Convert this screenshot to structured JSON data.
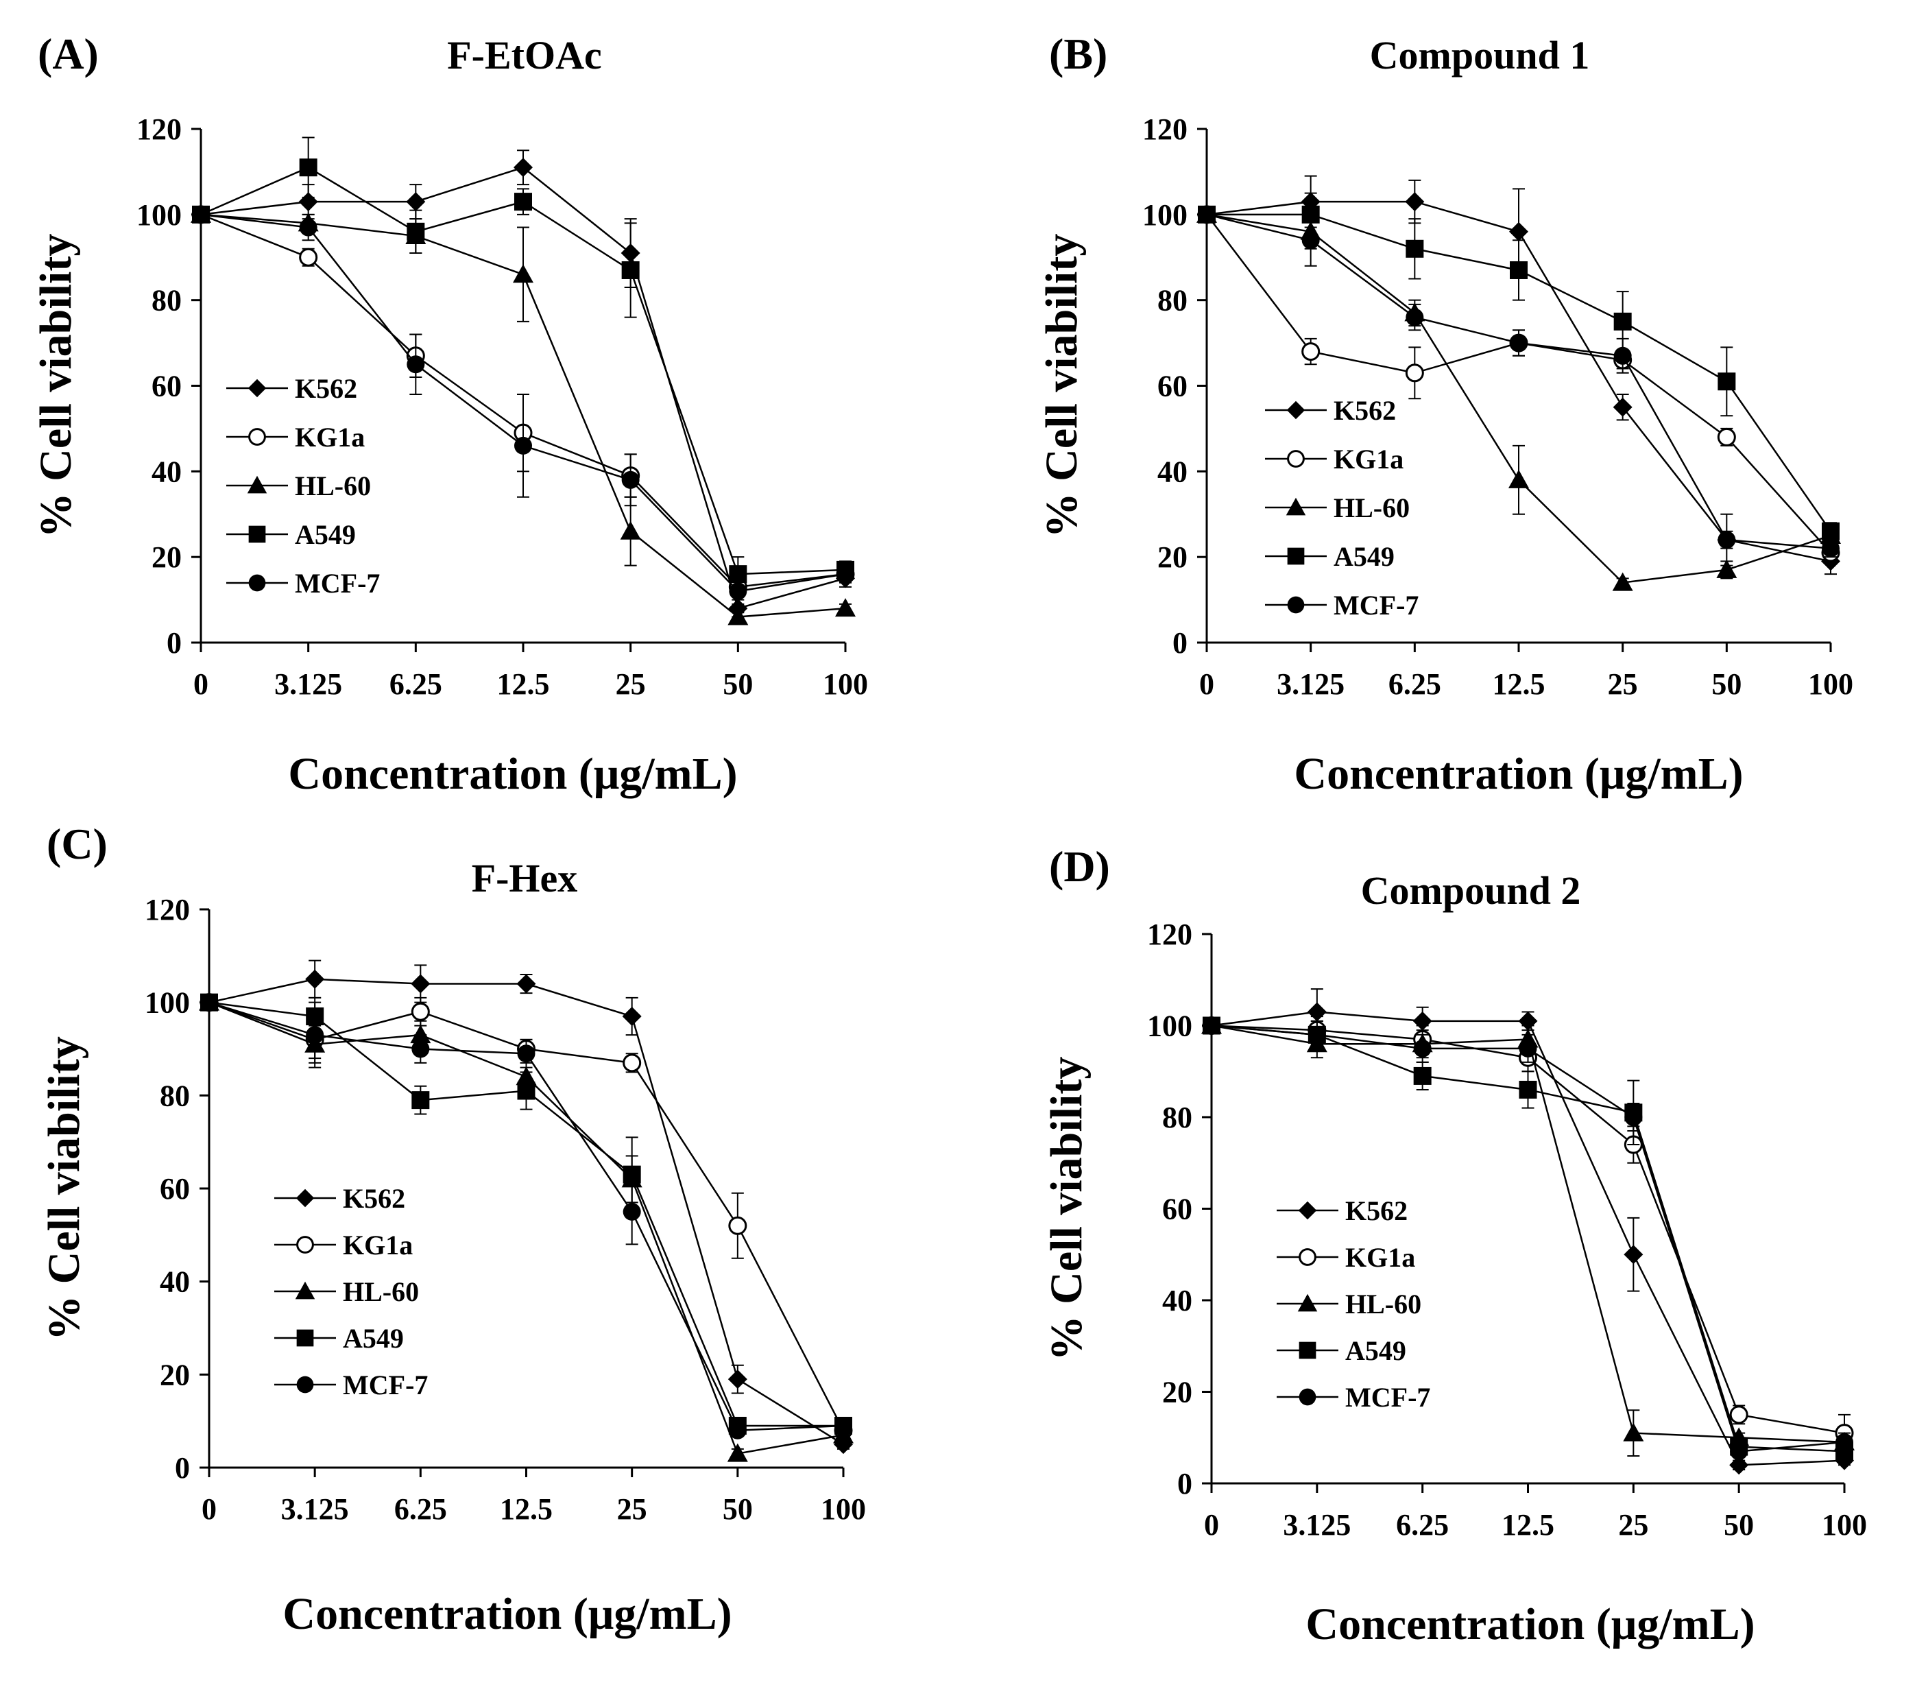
{
  "chart_data": [
    {
      "type": "line",
      "panel": "(A)",
      "title": "F-EtOAc",
      "xlabel": "Concentration  (μg/mL)",
      "ylabel": "% Cell viability",
      "categories": [
        "0",
        "3.125",
        "6.25",
        "12.5",
        "25",
        "50",
        "100"
      ],
      "ylim": [
        0,
        120
      ],
      "yticks": [
        0,
        20,
        40,
        60,
        80,
        100,
        120
      ],
      "legend_position": "lower-left",
      "series": [
        {
          "name": "K562",
          "marker": "diamond",
          "values": [
            100,
            103,
            103,
            111,
            91,
            8,
            15
          ],
          "errors": [
            0,
            4,
            4,
            4,
            8,
            2,
            2
          ]
        },
        {
          "name": "KG1a",
          "marker": "open-circle",
          "values": [
            100,
            90,
            67,
            49,
            39,
            13,
            16
          ],
          "errors": [
            0,
            2,
            5,
            9,
            5,
            2,
            2
          ]
        },
        {
          "name": "HL-60",
          "marker": "triangle",
          "values": [
            100,
            98,
            95,
            86,
            26,
            6,
            8
          ],
          "errors": [
            0,
            2,
            4,
            11,
            8,
            1,
            1
          ]
        },
        {
          "name": "A549",
          "marker": "square",
          "values": [
            100,
            111,
            96,
            103,
            87,
            16,
            17
          ],
          "errors": [
            0,
            7,
            5,
            3,
            11,
            4,
            2
          ]
        },
        {
          "name": "MCF-7",
          "marker": "filled-circle",
          "values": [
            100,
            97,
            65,
            46,
            38,
            12,
            16
          ],
          "errors": [
            0,
            3,
            7,
            12,
            6,
            3,
            2
          ]
        }
      ]
    },
    {
      "type": "line",
      "panel": "(B)",
      "title": "Compound 1",
      "xlabel": "Concentration  (μg/mL)",
      "ylabel": "% Cell viability",
      "categories": [
        "0",
        "3.125",
        "6.25",
        "12.5",
        "25",
        "50",
        "100"
      ],
      "ylim": [
        0,
        120
      ],
      "yticks": [
        0,
        20,
        40,
        60,
        80,
        100,
        120
      ],
      "legend_position": "lower-left",
      "series": [
        {
          "name": "K562",
          "marker": "diamond",
          "values": [
            100,
            103,
            103,
            96,
            55,
            24,
            19
          ],
          "errors": [
            0,
            6,
            5,
            10,
            3,
            2,
            3
          ]
        },
        {
          "name": "KG1a",
          "marker": "open-circle",
          "values": [
            100,
            68,
            63,
            70,
            66,
            48,
            21
          ],
          "errors": [
            0,
            3,
            6,
            3,
            2,
            2,
            2
          ]
        },
        {
          "name": "HL-60",
          "marker": "triangle",
          "values": [
            100,
            96,
            77,
            38,
            14,
            17,
            25
          ],
          "errors": [
            0,
            4,
            3,
            8,
            1,
            2,
            2
          ]
        },
        {
          "name": "A549",
          "marker": "square",
          "values": [
            100,
            100,
            92,
            87,
            75,
            61,
            26
          ],
          "errors": [
            0,
            5,
            7,
            7,
            7,
            8,
            2
          ]
        },
        {
          "name": "MCF-7",
          "marker": "filled-circle",
          "values": [
            100,
            94,
            76,
            70,
            67,
            24,
            22
          ],
          "errors": [
            0,
            6,
            3,
            3,
            4,
            6,
            2
          ]
        }
      ]
    },
    {
      "type": "line",
      "panel": "(C)",
      "title": "F-Hex",
      "xlabel": "Concentration  (μg/mL)",
      "ylabel": "% Cell viability",
      "categories": [
        "0",
        "3.125",
        "6.25",
        "12.5",
        "25",
        "50",
        "100"
      ],
      "ylim": [
        0,
        120
      ],
      "yticks": [
        0,
        20,
        40,
        60,
        80,
        100,
        120
      ],
      "legend_position": "lower-left",
      "series": [
        {
          "name": "K562",
          "marker": "diamond",
          "values": [
            100,
            105,
            104,
            104,
            97,
            19,
            5
          ],
          "errors": [
            0,
            4,
            4,
            2,
            4,
            3,
            1
          ]
        },
        {
          "name": "KG1a",
          "marker": "open-circle",
          "values": [
            100,
            92,
            98,
            90,
            87,
            52,
            8
          ],
          "errors": [
            0,
            4,
            3,
            2,
            2,
            7,
            1
          ]
        },
        {
          "name": "HL-60",
          "marker": "triangle",
          "values": [
            100,
            91,
            93,
            84,
            62,
            3,
            7
          ],
          "errors": [
            0,
            4,
            3,
            3,
            5,
            1,
            1
          ]
        },
        {
          "name": "A549",
          "marker": "square",
          "values": [
            100,
            97,
            79,
            81,
            63,
            9,
            9
          ],
          "errors": [
            0,
            4,
            3,
            4,
            8,
            1,
            1
          ]
        },
        {
          "name": "MCF-7",
          "marker": "filled-circle",
          "values": [
            100,
            93,
            90,
            89,
            55,
            8,
            9
          ],
          "errors": [
            0,
            7,
            3,
            3,
            7,
            1,
            1
          ]
        }
      ]
    },
    {
      "type": "line",
      "panel": "(D)",
      "title": "Compound 2",
      "xlabel": "Concentration  (μg/mL)",
      "ylabel": "% Cell viability",
      "categories": [
        "0",
        "3.125",
        "6.25",
        "12.5",
        "25",
        "50",
        "100"
      ],
      "ylim": [
        0,
        120
      ],
      "yticks": [
        0,
        20,
        40,
        60,
        80,
        100,
        120
      ],
      "legend_position": "lower-left",
      "series": [
        {
          "name": "K562",
          "marker": "diamond",
          "values": [
            100,
            103,
            101,
            101,
            50,
            4,
            5
          ],
          "errors": [
            0,
            5,
            3,
            2,
            8,
            1,
            1
          ]
        },
        {
          "name": "KG1a",
          "marker": "open-circle",
          "values": [
            100,
            99,
            97,
            93,
            74,
            15,
            11
          ],
          "errors": [
            0,
            3,
            3,
            3,
            4,
            2,
            4
          ]
        },
        {
          "name": "HL-60",
          "marker": "triangle",
          "values": [
            100,
            96,
            96,
            97,
            11,
            10,
            9
          ],
          "errors": [
            0,
            3,
            3,
            3,
            5,
            1,
            1
          ]
        },
        {
          "name": "A549",
          "marker": "square",
          "values": [
            100,
            98,
            89,
            86,
            81,
            8,
            7
          ],
          "errors": [
            0,
            3,
            3,
            4,
            7,
            1,
            1
          ]
        },
        {
          "name": "MCF-7",
          "marker": "filled-circle",
          "values": [
            100,
            98,
            95,
            95,
            80,
            7,
            9
          ],
          "errors": [
            0,
            3,
            3,
            3,
            3,
            1,
            2
          ]
        }
      ]
    }
  ]
}
